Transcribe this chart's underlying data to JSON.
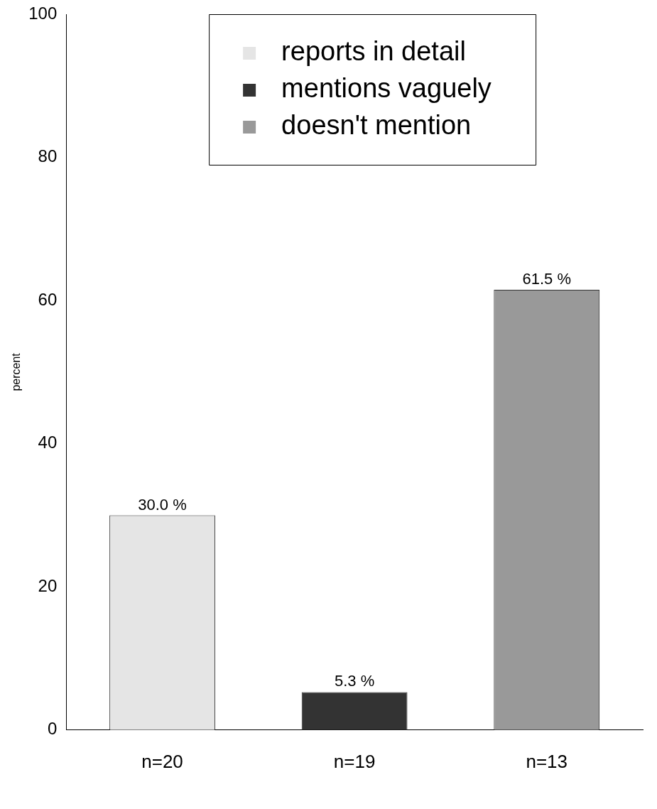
{
  "chart_data": {
    "type": "bar",
    "ylabel": "percent",
    "categories": [
      "n=20",
      "n=19",
      "n=13"
    ],
    "series": [
      {
        "name": "reports in detail",
        "color": "#e5e5e5",
        "values": [
          30.0,
          null,
          null
        ],
        "value_labels": [
          "30.0 %",
          null,
          null
        ]
      },
      {
        "name": "mentions vaguely",
        "color": "#333333",
        "values": [
          null,
          5.3,
          null
        ],
        "value_labels": [
          null,
          "5.3 %",
          null
        ]
      },
      {
        "name": "doesn't mention",
        "color": "#999999",
        "values": [
          null,
          null,
          61.5
        ],
        "value_labels": [
          null,
          null,
          "61.5 %"
        ]
      }
    ],
    "ylim": [
      0,
      100
    ],
    "yticks": [
      0,
      20,
      40,
      60,
      80,
      100
    ],
    "grid": false,
    "legend": "top"
  }
}
